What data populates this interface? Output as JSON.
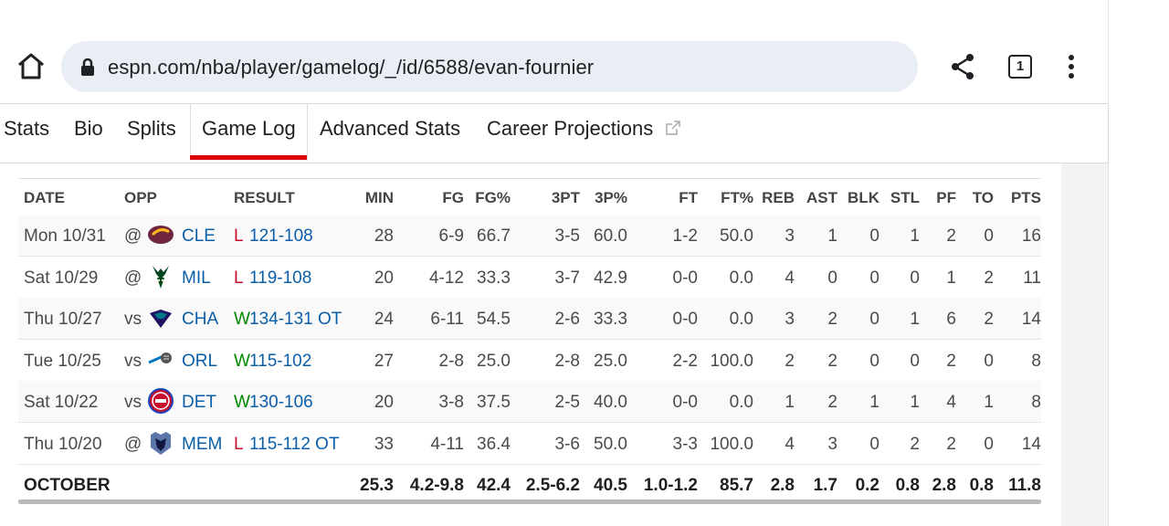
{
  "browser": {
    "url": "espn.com/nba/player/gamelog/_/id/6588/evan-fournier",
    "tab_count": "1"
  },
  "nav": {
    "tabs": [
      "Stats",
      "Bio",
      "Splits",
      "Game Log",
      "Advanced Stats",
      "Career Projections"
    ],
    "active": "Game Log"
  },
  "table": {
    "headers": [
      "DATE",
      "OPP",
      "RESULT",
      "MIN",
      "FG",
      "FG%",
      "3PT",
      "3P%",
      "FT",
      "FT%",
      "REB",
      "AST",
      "BLK",
      "STL",
      "PF",
      "TO",
      "PTS"
    ],
    "rows": [
      {
        "date": "Mon 10/31",
        "ha": "@",
        "opp": "CLE",
        "logo": "cavaliers-logo",
        "wl": "L",
        "score": "121-108",
        "min": "28",
        "fg": "6-9",
        "fgp": "66.7",
        "tpt": "3-5",
        "tpp": "60.0",
        "ft": "1-2",
        "ftp": "50.0",
        "reb": "3",
        "ast": "1",
        "blk": "0",
        "stl": "1",
        "pf": "2",
        "to": "0",
        "pts": "16"
      },
      {
        "date": "Sat 10/29",
        "ha": "@",
        "opp": "MIL",
        "logo": "bucks-logo",
        "wl": "L",
        "score": "119-108",
        "min": "20",
        "fg": "4-12",
        "fgp": "33.3",
        "tpt": "3-7",
        "tpp": "42.9",
        "ft": "0-0",
        "ftp": "0.0",
        "reb": "4",
        "ast": "0",
        "blk": "0",
        "stl": "0",
        "pf": "1",
        "to": "2",
        "pts": "11"
      },
      {
        "date": "Thu 10/27",
        "ha": "vs",
        "opp": "CHA",
        "logo": "hornets-logo",
        "wl": "W",
        "score": "134-131 OT",
        "min": "24",
        "fg": "6-11",
        "fgp": "54.5",
        "tpt": "2-6",
        "tpp": "33.3",
        "ft": "0-0",
        "ftp": "0.0",
        "reb": "3",
        "ast": "2",
        "blk": "0",
        "stl": "1",
        "pf": "6",
        "to": "2",
        "pts": "14"
      },
      {
        "date": "Tue 10/25",
        "ha": "vs",
        "opp": "ORL",
        "logo": "magic-logo",
        "wl": "W",
        "score": "115-102",
        "min": "27",
        "fg": "2-8",
        "fgp": "25.0",
        "tpt": "2-8",
        "tpp": "25.0",
        "ft": "2-2",
        "ftp": "100.0",
        "reb": "2",
        "ast": "2",
        "blk": "0",
        "stl": "0",
        "pf": "2",
        "to": "0",
        "pts": "8"
      },
      {
        "date": "Sat 10/22",
        "ha": "vs",
        "opp": "DET",
        "logo": "pistons-logo",
        "wl": "W",
        "score": "130-106",
        "min": "20",
        "fg": "3-8",
        "fgp": "37.5",
        "tpt": "2-5",
        "tpp": "40.0",
        "ft": "0-0",
        "ftp": "0.0",
        "reb": "1",
        "ast": "2",
        "blk": "1",
        "stl": "1",
        "pf": "4",
        "to": "1",
        "pts": "8"
      },
      {
        "date": "Thu 10/20",
        "ha": "@",
        "opp": "MEM",
        "logo": "grizzlies-logo",
        "wl": "L",
        "score": "115-112 OT",
        "min": "33",
        "fg": "4-11",
        "fgp": "36.4",
        "tpt": "3-6",
        "tpp": "50.0",
        "ft": "3-3",
        "ftp": "100.0",
        "reb": "4",
        "ast": "3",
        "blk": "0",
        "stl": "2",
        "pf": "2",
        "to": "0",
        "pts": "14"
      }
    ],
    "totals": {
      "label": "OCTOBER",
      "min": "25.3",
      "fg": "4.2-9.8",
      "fgp": "42.4",
      "tpt": "2.5-6.2",
      "tpp": "40.5",
      "ft": "1.0-1.2",
      "ftp": "85.7",
      "reb": "2.8",
      "ast": "1.7",
      "blk": "0.2",
      "stl": "0.8",
      "pf": "2.8",
      "to": "0.8",
      "pts": "11.8"
    }
  },
  "colors": {
    "link": "#0b5ea8",
    "loss": "#c8102e",
    "win": "#008800",
    "accent": "#dd0000"
  }
}
